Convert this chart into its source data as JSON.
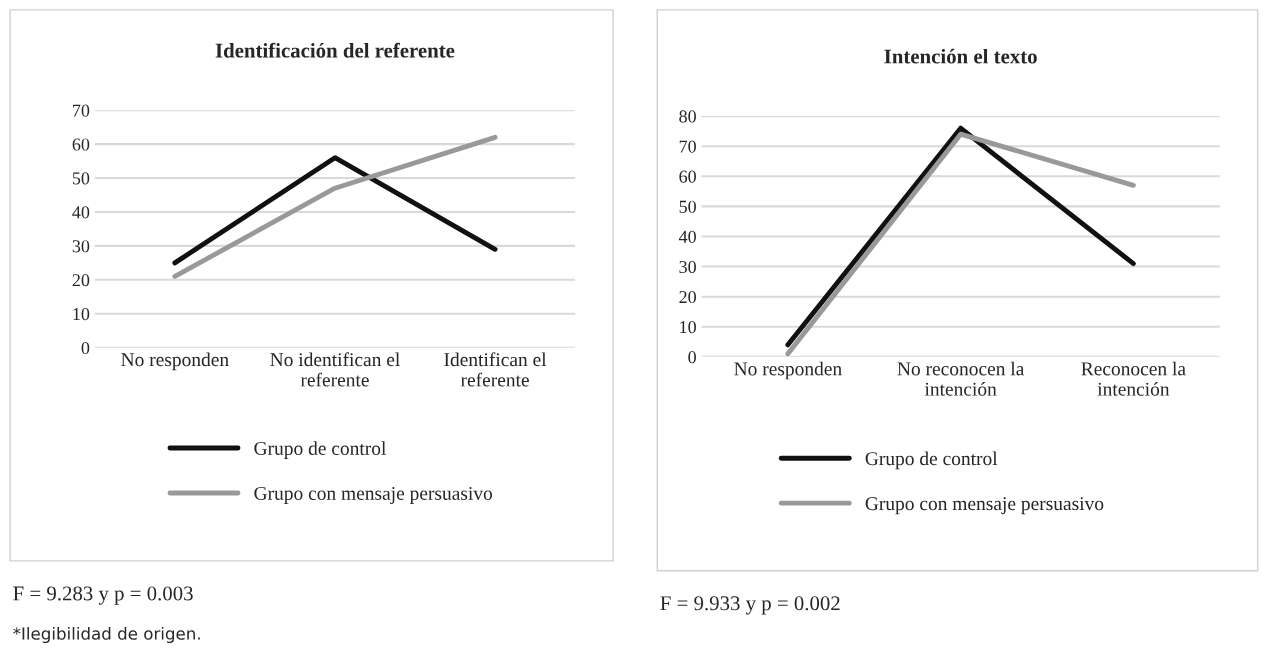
{
  "chart_data": [
    {
      "type": "line",
      "title": "Identificación del referente",
      "categories": [
        "No responden",
        "No identifican el\nreferente",
        "Identifican el\nreferente"
      ],
      "series": [
        {
          "name": "Grupo de control",
          "color": "#111111",
          "values": [
            25,
            56,
            29
          ]
        },
        {
          "name": "Grupo con mensaje persuasivo",
          "color": "#999999",
          "values": [
            21,
            47,
            62
          ]
        }
      ],
      "ylim": [
        0,
        70
      ],
      "yticks": [
        0,
        10,
        20,
        30,
        40,
        50,
        60,
        70
      ],
      "grid": "y",
      "legend": "bottom",
      "marker": "none",
      "line_style": "solid",
      "annotations": [
        "F = 9.283 y p = 0.003",
        "*Ilegibilidad de origen."
      ]
    },
    {
      "type": "line",
      "title": "Intención el texto",
      "categories": [
        "No responden",
        "No reconocen la\nintención",
        "Reconocen la\nintención"
      ],
      "series": [
        {
          "name": "Grupo de control",
          "color": "#111111",
          "values": [
            4,
            76,
            31
          ]
        },
        {
          "name": "Grupo con mensaje persuasivo",
          "color": "#999999",
          "values": [
            1,
            74,
            57
          ]
        }
      ],
      "ylim": [
        0,
        80
      ],
      "yticks": [
        0,
        10,
        20,
        30,
        40,
        50,
        60,
        70,
        80
      ],
      "grid": "y",
      "legend": "bottom",
      "marker": "none",
      "line_style": "solid",
      "annotations": [
        "F = 9.933 y p = 0.002"
      ]
    }
  ]
}
